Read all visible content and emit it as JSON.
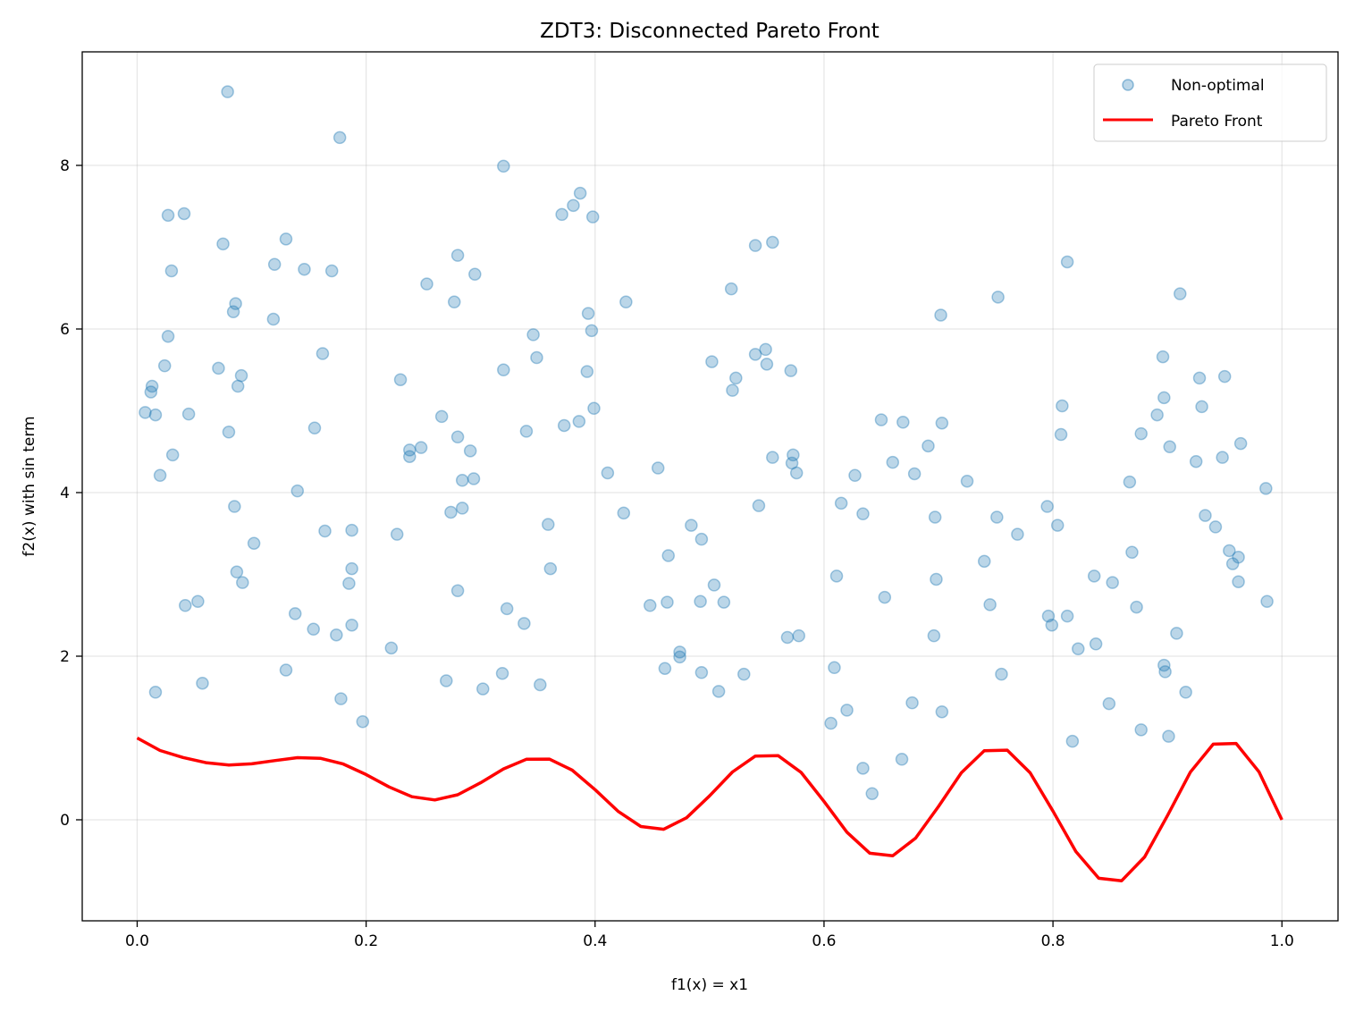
{
  "chart_data": {
    "type": "scatter",
    "title": "ZDT3: Disconnected Pareto Front",
    "xlabel": "f1(x) = x1",
    "ylabel": "f2(x) with sin term",
    "xlim": [
      -0.048,
      1.049
    ],
    "ylim": [
      -1.235,
      9.388
    ],
    "xticks": [
      0.0,
      0.2,
      0.4,
      0.6,
      0.8,
      1.0
    ],
    "xtick_labels": [
      "0.0",
      "0.2",
      "0.4",
      "0.6",
      "0.8",
      "1.0"
    ],
    "yticks": [
      0,
      2,
      4,
      6,
      8
    ],
    "ytick_labels": [
      "0",
      "2",
      "4",
      "6",
      "8"
    ],
    "grid": true,
    "legend_position": "top-right",
    "series": [
      {
        "name": "Non-optimal",
        "kind": "scatter",
        "color": "#1f77b4",
        "alpha": 0.3,
        "points": [
          [
            0.079,
            8.9
          ],
          [
            0.177,
            8.34
          ],
          [
            0.32,
            7.99
          ],
          [
            0.387,
            7.66
          ],
          [
            0.381,
            7.51
          ],
          [
            0.371,
            7.4
          ],
          [
            0.398,
            7.37
          ],
          [
            0.027,
            7.39
          ],
          [
            0.041,
            7.41
          ],
          [
            0.075,
            7.04
          ],
          [
            0.13,
            7.1
          ],
          [
            0.54,
            7.02
          ],
          [
            0.555,
            7.06
          ],
          [
            0.03,
            6.71
          ],
          [
            0.12,
            6.79
          ],
          [
            0.146,
            6.73
          ],
          [
            0.17,
            6.71
          ],
          [
            0.28,
            6.9
          ],
          [
            0.253,
            6.55
          ],
          [
            0.295,
            6.67
          ],
          [
            0.277,
            6.33
          ],
          [
            0.427,
            6.33
          ],
          [
            0.519,
            6.49
          ],
          [
            0.8125,
            6.82
          ],
          [
            0.911,
            6.43
          ],
          [
            0.752,
            6.39
          ],
          [
            0.702,
            6.17
          ],
          [
            0.086,
            6.31
          ],
          [
            0.084,
            6.21
          ],
          [
            0.119,
            6.12
          ],
          [
            0.394,
            6.19
          ],
          [
            0.397,
            5.98
          ],
          [
            0.027,
            5.91
          ],
          [
            0.346,
            5.93
          ],
          [
            0.349,
            5.65
          ],
          [
            0.162,
            5.7
          ],
          [
            0.024,
            5.55
          ],
          [
            0.071,
            5.52
          ],
          [
            0.091,
            5.43
          ],
          [
            0.088,
            5.3
          ],
          [
            0.32,
            5.5
          ],
          [
            0.393,
            5.48
          ],
          [
            0.502,
            5.6
          ],
          [
            0.523,
            5.4
          ],
          [
            0.52,
            5.25
          ],
          [
            0.54,
            5.69
          ],
          [
            0.549,
            5.75
          ],
          [
            0.55,
            5.57
          ],
          [
            0.571,
            5.49
          ],
          [
            0.896,
            5.66
          ],
          [
            0.928,
            5.4
          ],
          [
            0.95,
            5.42
          ],
          [
            0.007,
            4.98
          ],
          [
            0.012,
            5.23
          ],
          [
            0.013,
            5.3
          ],
          [
            0.016,
            4.95
          ],
          [
            0.045,
            4.96
          ],
          [
            0.08,
            4.74
          ],
          [
            0.031,
            4.46
          ],
          [
            0.02,
            4.21
          ],
          [
            0.155,
            4.79
          ],
          [
            0.23,
            5.38
          ],
          [
            0.266,
            4.93
          ],
          [
            0.28,
            4.68
          ],
          [
            0.248,
            4.55
          ],
          [
            0.238,
            4.52
          ],
          [
            0.238,
            4.44
          ],
          [
            0.291,
            4.51
          ],
          [
            0.284,
            4.15
          ],
          [
            0.294,
            4.17
          ],
          [
            0.399,
            5.03
          ],
          [
            0.386,
            4.87
          ],
          [
            0.373,
            4.82
          ],
          [
            0.34,
            4.75
          ],
          [
            0.411,
            4.24
          ],
          [
            0.455,
            4.3
          ],
          [
            0.555,
            4.43
          ],
          [
            0.573,
            4.46
          ],
          [
            0.572,
            4.36
          ],
          [
            0.576,
            4.24
          ],
          [
            0.65,
            4.89
          ],
          [
            0.669,
            4.86
          ],
          [
            0.703,
            4.85
          ],
          [
            0.691,
            4.57
          ],
          [
            0.627,
            4.21
          ],
          [
            0.66,
            4.37
          ],
          [
            0.679,
            4.23
          ],
          [
            0.725,
            4.14
          ],
          [
            0.808,
            5.06
          ],
          [
            0.807,
            4.71
          ],
          [
            0.897,
            5.16
          ],
          [
            0.891,
            4.95
          ],
          [
            0.877,
            4.72
          ],
          [
            0.902,
            4.56
          ],
          [
            0.925,
            4.38
          ],
          [
            0.93,
            5.05
          ],
          [
            0.867,
            4.13
          ],
          [
            0.964,
            4.6
          ],
          [
            0.986,
            4.05
          ],
          [
            0.948,
            4.43
          ],
          [
            0.14,
            4.02
          ],
          [
            0.085,
            3.83
          ],
          [
            0.274,
            3.76
          ],
          [
            0.284,
            3.81
          ],
          [
            0.227,
            3.49
          ],
          [
            0.164,
            3.53
          ],
          [
            0.1875,
            3.54
          ],
          [
            0.102,
            3.38
          ],
          [
            0.359,
            3.61
          ],
          [
            0.361,
            3.07
          ],
          [
            0.425,
            3.75
          ],
          [
            0.543,
            3.84
          ],
          [
            0.615,
            3.87
          ],
          [
            0.634,
            3.74
          ],
          [
            0.697,
            3.7
          ],
          [
            0.751,
            3.7
          ],
          [
            0.795,
            3.83
          ],
          [
            0.769,
            3.49
          ],
          [
            0.74,
            3.16
          ],
          [
            0.804,
            3.6
          ],
          [
            0.933,
            3.72
          ],
          [
            0.942,
            3.58
          ],
          [
            0.954,
            3.29
          ],
          [
            0.957,
            3.13
          ],
          [
            0.962,
            2.91
          ],
          [
            0.962,
            3.21
          ],
          [
            0.087,
            3.03
          ],
          [
            0.1875,
            3.07
          ],
          [
            0.185,
            2.89
          ],
          [
            0.092,
            2.9
          ],
          [
            0.28,
            2.8
          ],
          [
            0.484,
            3.6
          ],
          [
            0.493,
            3.43
          ],
          [
            0.464,
            3.23
          ],
          [
            0.611,
            2.98
          ],
          [
            0.653,
            2.72
          ],
          [
            0.698,
            2.94
          ],
          [
            0.836,
            2.98
          ],
          [
            0.852,
            2.9
          ],
          [
            0.869,
            3.27
          ],
          [
            0.138,
            2.52
          ],
          [
            0.042,
            2.62
          ],
          [
            0.053,
            2.67
          ],
          [
            0.323,
            2.58
          ],
          [
            0.338,
            2.4
          ],
          [
            0.154,
            2.33
          ],
          [
            0.174,
            2.26
          ],
          [
            0.1875,
            2.38
          ],
          [
            0.448,
            2.62
          ],
          [
            0.463,
            2.66
          ],
          [
            0.492,
            2.67
          ],
          [
            0.5125,
            2.66
          ],
          [
            0.504,
            2.87
          ],
          [
            0.568,
            2.23
          ],
          [
            0.578,
            2.25
          ],
          [
            0.696,
            2.25
          ],
          [
            0.745,
            2.63
          ],
          [
            0.796,
            2.49
          ],
          [
            0.799,
            2.38
          ],
          [
            0.8125,
            2.49
          ],
          [
            0.822,
            2.09
          ],
          [
            0.8375,
            2.15
          ],
          [
            0.873,
            2.6
          ],
          [
            0.908,
            2.28
          ],
          [
            0.987,
            2.67
          ],
          [
            0.222,
            2.1
          ],
          [
            0.13,
            1.83
          ],
          [
            0.178,
            1.48
          ],
          [
            0.197,
            1.2
          ],
          [
            0.057,
            1.67
          ],
          [
            0.016,
            1.56
          ],
          [
            0.27,
            1.7
          ],
          [
            0.302,
            1.6
          ],
          [
            0.319,
            1.79
          ],
          [
            0.352,
            1.65
          ],
          [
            0.461,
            1.85
          ],
          [
            0.474,
            2.05
          ],
          [
            0.474,
            1.99
          ],
          [
            0.493,
            1.8
          ],
          [
            0.53,
            1.78
          ],
          [
            0.508,
            1.57
          ],
          [
            0.609,
            1.86
          ],
          [
            0.606,
            1.18
          ],
          [
            0.62,
            1.34
          ],
          [
            0.677,
            1.43
          ],
          [
            0.703,
            1.32
          ],
          [
            0.755,
            1.78
          ],
          [
            0.817,
            0.96
          ],
          [
            0.849,
            1.42
          ],
          [
            0.877,
            1.1
          ],
          [
            0.897,
            1.89
          ],
          [
            0.898,
            1.81
          ],
          [
            0.916,
            1.56
          ],
          [
            0.901,
            1.02
          ],
          [
            0.634,
            0.63
          ],
          [
            0.642,
            0.32
          ],
          [
            0.668,
            0.74
          ]
        ]
      },
      {
        "name": "Pareto Front",
        "kind": "line",
        "color": "#ff0000",
        "x": [
          0,
          0.02,
          0.04,
          0.06,
          0.08,
          0.1,
          0.12,
          0.14,
          0.16,
          0.18,
          0.2,
          0.22,
          0.24,
          0.26,
          0.28,
          0.3,
          0.32,
          0.34,
          0.36,
          0.38,
          0.4,
          0.42,
          0.44,
          0.46,
          0.48,
          0.5,
          0.52,
          0.54,
          0.56,
          0.58,
          0.6,
          0.62,
          0.64,
          0.66,
          0.68,
          0.7,
          0.72,
          0.74,
          0.76,
          0.78,
          0.8,
          0.82,
          0.84,
          0.86,
          0.88,
          0.9,
          0.92,
          0.94,
          0.96,
          0.98,
          1.0
        ],
        "y": [
          1.0,
          0.847,
          0.762,
          0.698,
          0.67,
          0.684,
          0.724,
          0.759,
          0.752,
          0.682,
          0.553,
          0.402,
          0.282,
          0.243,
          0.306,
          0.452,
          0.622,
          0.74,
          0.742,
          0.607,
          0.368,
          0.105,
          -0.082,
          -0.116,
          0.025,
          0.293,
          0.585,
          0.779,
          0.784,
          0.579,
          0.225,
          -0.152,
          -0.409,
          -0.44,
          -0.224,
          0.163,
          0.575,
          0.844,
          0.851,
          0.575,
          0.106,
          -0.388,
          -0.715,
          -0.745,
          -0.455,
          0.051,
          0.582,
          0.925,
          0.933,
          0.586,
          0.0
        ]
      }
    ]
  }
}
